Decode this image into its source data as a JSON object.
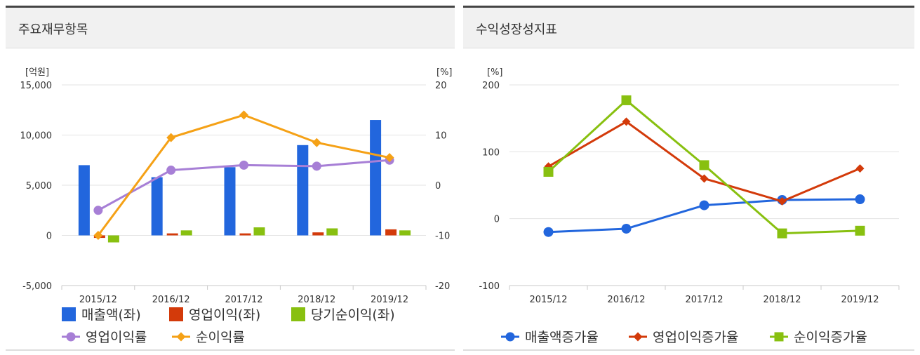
{
  "panels": {
    "left": {
      "title": "주요재무항목"
    },
    "right": {
      "title": "수익성장성지표"
    }
  },
  "chart_data": [
    {
      "type": "bar",
      "categories": [
        "2015/12",
        "2016/12",
        "2017/12",
        "2018/12",
        "2019/12"
      ],
      "y_left": {
        "unit": "[억원]",
        "range": [
          -5000,
          15000
        ],
        "ticks": [
          "-5,000",
          "0",
          "5,000",
          "10,000",
          "15,000"
        ],
        "tick_values": [
          -5000,
          0,
          5000,
          10000,
          15000
        ]
      },
      "y_right": {
        "unit": "[%]",
        "range": [
          -20,
          20
        ],
        "ticks": [
          "-20",
          "-10",
          "0",
          "10",
          "20"
        ],
        "tick_values": [
          -20,
          -10,
          0,
          10,
          20
        ]
      },
      "series": [
        {
          "name": "매출액(좌)",
          "kind": "bar",
          "axis": "left",
          "color": "#2266dd",
          "values": [
            7000,
            5800,
            6800,
            9000,
            11500
          ]
        },
        {
          "name": "영업이익(좌)",
          "kind": "bar",
          "axis": "left",
          "color": "#d33a0a",
          "values": [
            -250,
            200,
            200,
            300,
            600
          ]
        },
        {
          "name": "당기순이익(좌)",
          "kind": "bar",
          "axis": "left",
          "color": "#88c010",
          "values": [
            -700,
            500,
            800,
            700,
            500
          ]
        },
        {
          "name": "영업이익률",
          "kind": "line",
          "axis": "right",
          "marker": "circle",
          "color": "#a77fd6",
          "values": [
            -5,
            3,
            4,
            3.8,
            5
          ]
        },
        {
          "name": "순이익률",
          "kind": "line",
          "axis": "right",
          "marker": "diamond",
          "color": "#f5a116",
          "values": [
            -10,
            9.5,
            14,
            8.5,
            5.5
          ]
        }
      ]
    },
    {
      "type": "line",
      "categories": [
        "2015/12",
        "2016/12",
        "2017/12",
        "2018/12",
        "2019/12"
      ],
      "y": {
        "unit": "[%]",
        "range": [
          -100,
          200
        ],
        "ticks": [
          "-100",
          "0",
          "100",
          "200"
        ],
        "tick_values": [
          -100,
          0,
          100,
          200
        ]
      },
      "series": [
        {
          "name": "매출액증가율",
          "marker": "circle",
          "color": "#2266dd",
          "values": [
            -20,
            -15,
            20,
            28,
            29
          ]
        },
        {
          "name": "영업이익증가율",
          "marker": "diamond",
          "color": "#d33a0a",
          "values": [
            78,
            145,
            60,
            26,
            75
          ]
        },
        {
          "name": "순이익증가율",
          "marker": "square",
          "color": "#88c010",
          "values": [
            70,
            177,
            80,
            -22,
            -18
          ]
        }
      ]
    }
  ]
}
